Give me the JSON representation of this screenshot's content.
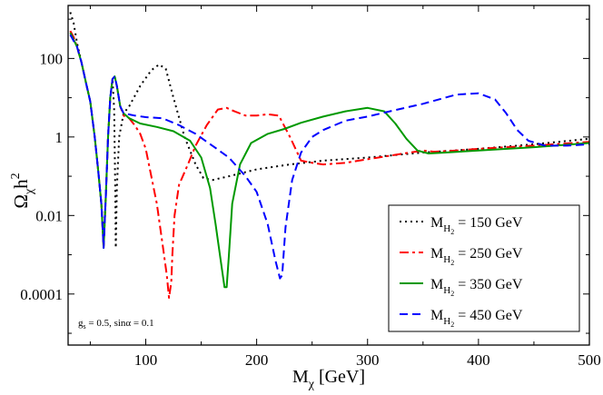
{
  "chart_data": {
    "type": "line",
    "title": "",
    "xlabel": {
      "main": "M",
      "sub": "χ",
      "unit": " [GeV]"
    },
    "ylabel": {
      "main": "Ω",
      "sub": "χ",
      "tail": "h",
      "sup": "2"
    },
    "xlim": [
      30,
      500
    ],
    "ylim_log10": [
      -5.3,
      3.35
    ],
    "yscale": "log",
    "x_ticks": [
      100,
      200,
      300,
      400,
      500
    ],
    "x_tick_labels": [
      "100",
      "200",
      "300",
      "400",
      "500"
    ],
    "y_ticks": [
      0.0001,
      0.01,
      1,
      100
    ],
    "y_tick_labels": [
      "0.0001",
      "0.01",
      "1",
      "100"
    ],
    "annotation": {
      "g": "g",
      "g_sub": "s",
      "text": " = 0.5, sinα = 0.1"
    },
    "legend_position": "bottom-right",
    "series": [
      {
        "name": "M_H2 = 150 GeV",
        "legend_main": "M",
        "legend_sub": "H",
        "legend_subsub": "2",
        "legend_value": " = 150 GeV",
        "color": "#000000",
        "dash": "dotted",
        "points": [
          [
            32,
            1500
          ],
          [
            35,
            800
          ],
          [
            38,
            250
          ],
          [
            42,
            80
          ],
          [
            46,
            25
          ],
          [
            50,
            8
          ],
          [
            54,
            1
          ],
          [
            57,
            0.15
          ],
          [
            60,
            0.02
          ],
          [
            62,
            0.0025
          ],
          [
            64,
            0.03
          ],
          [
            66,
            1
          ],
          [
            68,
            10
          ],
          [
            70,
            30
          ],
          [
            71.5,
            5
          ],
          [
            72.5,
            0.05
          ],
          [
            73,
            0.0015
          ],
          [
            74,
            0.05
          ],
          [
            76,
            1
          ],
          [
            80,
            4
          ],
          [
            85,
            6
          ],
          [
            95,
            20
          ],
          [
            105,
            50
          ],
          [
            112,
            70
          ],
          [
            118,
            55
          ],
          [
            125,
            10
          ],
          [
            135,
            1
          ],
          [
            145,
            0.2
          ],
          [
            152,
            0.09
          ],
          [
            160,
            0.08
          ],
          [
            175,
            0.1
          ],
          [
            200,
            0.15
          ],
          [
            230,
            0.2
          ],
          [
            260,
            0.25
          ],
          [
            300,
            0.3
          ],
          [
            350,
            0.4
          ],
          [
            400,
            0.5
          ],
          [
            450,
            0.65
          ],
          [
            500,
            0.9
          ]
        ]
      },
      {
        "name": "M_H2 = 250 GeV",
        "legend_main": "M",
        "legend_sub": "H",
        "legend_subsub": "2",
        "legend_value": " = 250 GeV",
        "color": "#ff0000",
        "dash": "dashdot",
        "points": [
          [
            32,
            500
          ],
          [
            35,
            350
          ],
          [
            38,
            200
          ],
          [
            42,
            80
          ],
          [
            46,
            25
          ],
          [
            50,
            8
          ],
          [
            54,
            1
          ],
          [
            57,
            0.15
          ],
          [
            60,
            0.02
          ],
          [
            62,
            0.0015
          ],
          [
            64,
            0.03
          ],
          [
            66,
            1
          ],
          [
            68,
            10
          ],
          [
            70,
            30
          ],
          [
            72,
            35
          ],
          [
            74,
            20
          ],
          [
            77,
            6
          ],
          [
            80,
            3.5
          ],
          [
            85,
            3
          ],
          [
            90,
            2
          ],
          [
            95,
            1.2
          ],
          [
            100,
            0.5
          ],
          [
            105,
            0.1
          ],
          [
            110,
            0.02
          ],
          [
            115,
            0.002
          ],
          [
            119,
            0.0003
          ],
          [
            121,
            8e-05
          ],
          [
            123,
            0.0002
          ],
          [
            124,
            0.001
          ],
          [
            126,
            0.01
          ],
          [
            130,
            0.06
          ],
          [
            138,
            0.2
          ],
          [
            145,
            0.6
          ],
          [
            155,
            2
          ],
          [
            165,
            5
          ],
          [
            173,
            5.5
          ],
          [
            180,
            4.5
          ],
          [
            190,
            3.5
          ],
          [
            200,
            3.5
          ],
          [
            210,
            3.8
          ],
          [
            220,
            3.5
          ],
          [
            230,
            1
          ],
          [
            240,
            0.25
          ],
          [
            250,
            0.22
          ],
          [
            260,
            0.2
          ],
          [
            280,
            0.22
          ],
          [
            300,
            0.27
          ],
          [
            330,
            0.37
          ],
          [
            350,
            0.45
          ],
          [
            360,
            0.42
          ],
          [
            380,
            0.45
          ],
          [
            400,
            0.5
          ],
          [
            450,
            0.6
          ],
          [
            500,
            0.75
          ]
        ]
      },
      {
        "name": "M_H2 = 350 GeV",
        "legend_main": "M",
        "legend_sub": "H",
        "legend_subsub": "2",
        "legend_value": " = 350 GeV",
        "color": "#009900",
        "dash": "solid",
        "points": [
          [
            32,
            450
          ],
          [
            35,
            300
          ],
          [
            38,
            200
          ],
          [
            42,
            80
          ],
          [
            46,
            25
          ],
          [
            50,
            8
          ],
          [
            54,
            1
          ],
          [
            57,
            0.15
          ],
          [
            60,
            0.02
          ],
          [
            62,
            0.0015
          ],
          [
            64,
            0.03
          ],
          [
            66,
            1
          ],
          [
            68,
            10
          ],
          [
            70,
            30
          ],
          [
            72,
            35
          ],
          [
            74,
            20
          ],
          [
            77,
            6
          ],
          [
            80,
            4
          ],
          [
            85,
            3
          ],
          [
            95,
            2.2
          ],
          [
            110,
            1.8
          ],
          [
            125,
            1.4
          ],
          [
            140,
            0.8
          ],
          [
            150,
            0.3
          ],
          [
            158,
            0.05
          ],
          [
            163,
            0.006
          ],
          [
            168,
            0.0006
          ],
          [
            171,
            0.00015
          ],
          [
            173,
            0.00015
          ],
          [
            175,
            0.001
          ],
          [
            178,
            0.02
          ],
          [
            185,
            0.2
          ],
          [
            195,
            0.7
          ],
          [
            210,
            1.2
          ],
          [
            225,
            1.6
          ],
          [
            240,
            2.3
          ],
          [
            260,
            3.3
          ],
          [
            280,
            4.5
          ],
          [
            300,
            5.5
          ],
          [
            315,
            4.5
          ],
          [
            325,
            2.2
          ],
          [
            335,
            0.9
          ],
          [
            345,
            0.45
          ],
          [
            355,
            0.38
          ],
          [
            370,
            0.4
          ],
          [
            400,
            0.45
          ],
          [
            450,
            0.55
          ],
          [
            500,
            0.7
          ]
        ]
      },
      {
        "name": "M_H2 = 450 GeV",
        "legend_main": "M",
        "legend_sub": "H",
        "legend_subsub": "2",
        "legend_value": " = 450 GeV",
        "color": "#0000ff",
        "dash": "dashed",
        "points": [
          [
            32,
            400
          ],
          [
            35,
            280
          ],
          [
            38,
            200
          ],
          [
            42,
            80
          ],
          [
            46,
            25
          ],
          [
            50,
            8
          ],
          [
            54,
            1
          ],
          [
            57,
            0.15
          ],
          [
            60,
            0.02
          ],
          [
            62,
            0.0015
          ],
          [
            64,
            0.03
          ],
          [
            66,
            1
          ],
          [
            68,
            10
          ],
          [
            70,
            30
          ],
          [
            72,
            35
          ],
          [
            74,
            20
          ],
          [
            77,
            6
          ],
          [
            80,
            4
          ],
          [
            90,
            3.5
          ],
          [
            100,
            3.2
          ],
          [
            115,
            3
          ],
          [
            130,
            2
          ],
          [
            145,
            1.2
          ],
          [
            160,
            0.6
          ],
          [
            175,
            0.3
          ],
          [
            190,
            0.1
          ],
          [
            200,
            0.04
          ],
          [
            210,
            0.006
          ],
          [
            217,
            0.0007
          ],
          [
            221,
            0.00025
          ],
          [
            223,
            0.0003
          ],
          [
            226,
            0.005
          ],
          [
            232,
            0.08
          ],
          [
            240,
            0.4
          ],
          [
            250,
            1
          ],
          [
            260,
            1.5
          ],
          [
            280,
            2.6
          ],
          [
            300,
            3.3
          ],
          [
            320,
            4.5
          ],
          [
            350,
            7
          ],
          [
            380,
            12
          ],
          [
            400,
            13
          ],
          [
            415,
            9
          ],
          [
            425,
            4
          ],
          [
            435,
            1.5
          ],
          [
            445,
            0.8
          ],
          [
            460,
            0.6
          ],
          [
            480,
            0.6
          ],
          [
            500,
            0.65
          ]
        ]
      }
    ]
  }
}
